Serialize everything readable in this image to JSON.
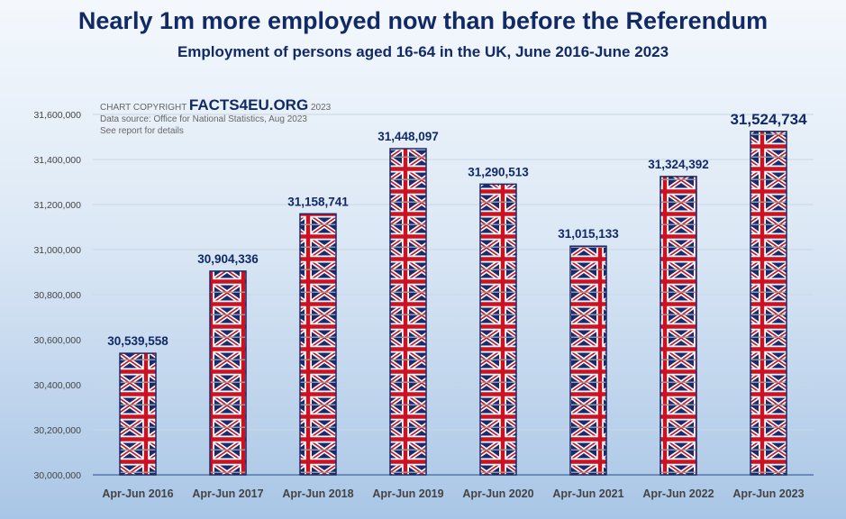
{
  "title": "Nearly 1m more employed now than before the Referendum",
  "subtitle": "Employment of persons aged 16-64 in the UK, June 2016-June 2023",
  "credit": {
    "prefix": "CHART COPYRIGHT",
    "brand": "FACTS4EU.ORG",
    "year": "2023",
    "source": "Data source: Office for National Statistics, Aug 2023",
    "note": "See report for details"
  },
  "chart_data": {
    "type": "bar",
    "title": "Nearly 1m more employed now than before the Referendum",
    "xlabel": "",
    "ylabel": "",
    "categories": [
      "Apr-Jun 2016",
      "Apr-Jun 2017",
      "Apr-Jun 2018",
      "Apr-Jun 2019",
      "Apr-Jun 2020",
      "Apr-Jun 2021",
      "Apr-Jun 2022",
      "Apr-Jun 2023"
    ],
    "values": [
      30539558,
      30904336,
      31158741,
      31448097,
      31290513,
      31015133,
      31324392,
      31524734
    ],
    "value_labels": [
      "30,539,558",
      "30,904,336",
      "31,158,741",
      "31,448,097",
      "31,290,513",
      "31,015,133",
      "31,324,392",
      "31,524,734"
    ],
    "ylim": [
      30000000,
      31600000
    ],
    "yticks": [
      "30,000,000",
      "30,200,000",
      "30,400,000",
      "30,600,000",
      "30,800,000",
      "31,000,000",
      "31,200,000",
      "31,400,000",
      "31,600,000"
    ],
    "grid": true
  }
}
